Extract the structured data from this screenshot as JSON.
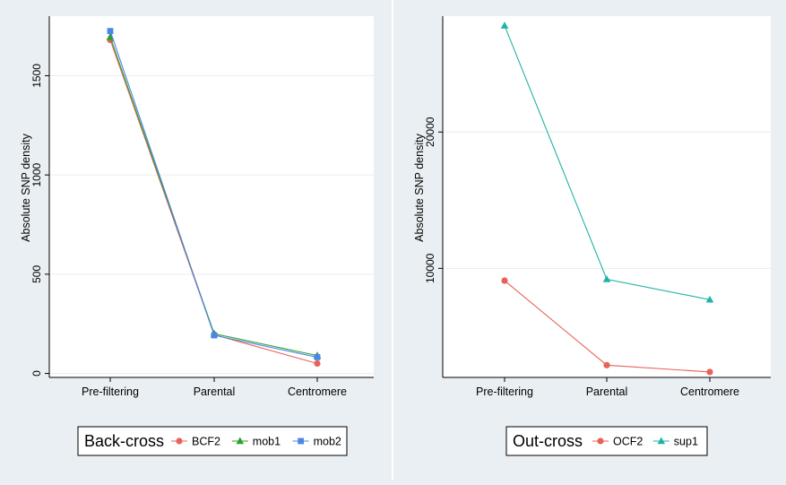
{
  "chart_data": [
    {
      "type": "line",
      "ylabel": "Absolute SNP density",
      "categories": [
        "Pre-filtering",
        "Parental",
        "Centromere"
      ],
      "yticks": [
        0,
        500,
        1000,
        1500
      ],
      "ylim": [
        -20,
        1800
      ],
      "grid": true,
      "legend": {
        "title": "Back-cross",
        "placement": "bottom"
      },
      "series": [
        {
          "name": "BCF2",
          "marker": "circle",
          "color": "#e8625a",
          "values": [
            1680,
            195,
            50
          ]
        },
        {
          "name": "mob1",
          "marker": "triangle",
          "color": "#2ca02c",
          "values": [
            1695,
            200,
            90
          ]
        },
        {
          "name": "mob2",
          "marker": "square",
          "color": "#4a86e8",
          "values": [
            1725,
            192,
            82
          ]
        }
      ]
    },
    {
      "type": "line",
      "ylabel": "Absolute SNP density",
      "categories": [
        "Pre-filtering",
        "Parental",
        "Centromere"
      ],
      "yticks": [
        10000,
        20000
      ],
      "ylim": [
        2000,
        28500
      ],
      "grid": true,
      "legend": {
        "title": "Out-cross",
        "placement": "bottom"
      },
      "series": [
        {
          "name": "OCF2",
          "marker": "circle",
          "color": "#e8625a",
          "values": [
            9100,
            2900,
            2400
          ]
        },
        {
          "name": "sup1",
          "marker": "triangle",
          "color": "#20b2aa",
          "values": [
            27800,
            9200,
            7700
          ]
        }
      ]
    }
  ]
}
